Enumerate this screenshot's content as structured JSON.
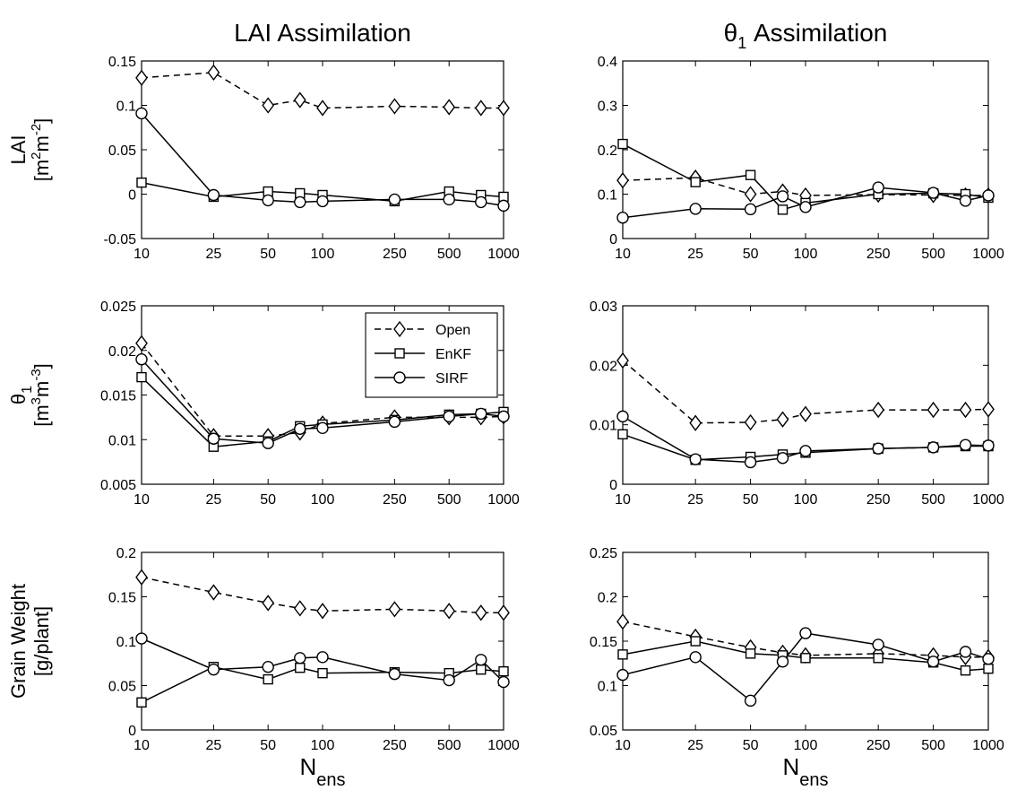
{
  "figure": {
    "col_titles": [
      {
        "main": "LAI Assimilation",
        "sym": "",
        "sub": ""
      },
      {
        "main": "Assimilation",
        "sym": "θ",
        "sub": "1"
      }
    ],
    "row_ylabels": [
      {
        "line1": {
          "main": "LAI",
          "sub": "",
          "sup": ""
        },
        "line2": "[m2m-2]"
      },
      {
        "line1": {
          "main": "θ",
          "sub": "1",
          "sup": ""
        },
        "line2": "[m3m-3]"
      },
      {
        "line1": {
          "main": "Grain Weight",
          "sub": "",
          "sup": ""
        },
        "line2": "[g/plant]"
      }
    ],
    "xlabel": {
      "main": "N",
      "sub": "ens"
    },
    "legend": [
      {
        "name": "Open",
        "style": "dashed",
        "marker": "diamond"
      },
      {
        "name": "EnKF",
        "style": "solid",
        "marker": "square"
      },
      {
        "name": "SIRF",
        "style": "solid",
        "marker": "circle"
      }
    ]
  },
  "chart_data": [
    {
      "type": "line",
      "x_scale": "log",
      "x": [
        10,
        25,
        50,
        75,
        100,
        250,
        500,
        750,
        1000
      ],
      "xticks": [
        "10",
        "25",
        "50",
        "100",
        "250",
        "500",
        "1000"
      ],
      "ylim": [
        -0.05,
        0.15
      ],
      "yticks": [
        "-0.05",
        "0",
        "0.05",
        "0.1",
        "0.15"
      ],
      "series": [
        {
          "name": "Open",
          "values": [
            0.131,
            0.137,
            0.1,
            0.106,
            0.097,
            0.099,
            0.098,
            0.097,
            0.097
          ]
        },
        {
          "name": "EnKF",
          "values": [
            0.013,
            -0.003,
            0.003,
            0.001,
            -0.001,
            -0.008,
            0.003,
            -0.001,
            -0.003
          ]
        },
        {
          "name": "SIRF",
          "values": [
            0.091,
            -0.001,
            -0.007,
            -0.009,
            -0.008,
            -0.006,
            -0.006,
            -0.009,
            -0.013
          ]
        }
      ]
    },
    {
      "type": "line",
      "x_scale": "log",
      "x": [
        10,
        25,
        50,
        75,
        100,
        250,
        500,
        750,
        1000
      ],
      "xticks": [
        "10",
        "25",
        "50",
        "100",
        "250",
        "500",
        "1000"
      ],
      "ylim": [
        0,
        0.4
      ],
      "yticks": [
        "0",
        "0.1",
        "0.2",
        "0.3",
        "0.4"
      ],
      "series": [
        {
          "name": "Open",
          "values": [
            0.131,
            0.137,
            0.1,
            0.106,
            0.097,
            0.099,
            0.098,
            0.097,
            0.097
          ]
        },
        {
          "name": "EnKF",
          "values": [
            0.213,
            0.127,
            0.143,
            0.065,
            0.08,
            0.1,
            0.102,
            0.1,
            0.092
          ]
        },
        {
          "name": "SIRF",
          "values": [
            0.047,
            0.067,
            0.066,
            0.095,
            0.071,
            0.115,
            0.103,
            0.085,
            0.097
          ]
        }
      ]
    },
    {
      "type": "line",
      "x_scale": "log",
      "x": [
        10,
        25,
        50,
        75,
        100,
        250,
        500,
        750,
        1000
      ],
      "xticks": [
        "10",
        "25",
        "50",
        "100",
        "250",
        "500",
        "1000"
      ],
      "ylim": [
        0.005,
        0.025
      ],
      "yticks": [
        "0.005",
        "0.01",
        "0.015",
        "0.02",
        "0.025"
      ],
      "series": [
        {
          "name": "Open",
          "values": [
            0.0208,
            0.0104,
            0.0104,
            0.0108,
            0.0118,
            0.0125,
            0.0125,
            0.0125,
            0.0126
          ]
        },
        {
          "name": "EnKF",
          "values": [
            0.017,
            0.0092,
            0.0098,
            0.0115,
            0.0117,
            0.0122,
            0.0128,
            0.0129,
            0.0131
          ]
        },
        {
          "name": "SIRF",
          "values": [
            0.019,
            0.0101,
            0.0096,
            0.0112,
            0.0113,
            0.012,
            0.0126,
            0.0129,
            0.0126
          ]
        }
      ]
    },
    {
      "type": "line",
      "x_scale": "log",
      "x": [
        10,
        25,
        50,
        75,
        100,
        250,
        500,
        750,
        1000
      ],
      "xticks": [
        "10",
        "25",
        "50",
        "100",
        "250",
        "500",
        "1000"
      ],
      "ylim": [
        0,
        0.03
      ],
      "yticks": [
        "0",
        "0.01",
        "0.02",
        "0.03"
      ],
      "series": [
        {
          "name": "Open",
          "values": [
            0.0208,
            0.0103,
            0.0104,
            0.0109,
            0.0118,
            0.0125,
            0.0125,
            0.0125,
            0.0126
          ]
        },
        {
          "name": "EnKF",
          "values": [
            0.0084,
            0.0041,
            0.0046,
            0.005,
            0.0053,
            0.006,
            0.0062,
            0.0064,
            0.0064
          ]
        },
        {
          "name": "SIRF",
          "values": [
            0.0114,
            0.0042,
            0.0037,
            0.0044,
            0.0056,
            0.006,
            0.0062,
            0.0066,
            0.0065
          ]
        }
      ]
    },
    {
      "type": "line",
      "x_scale": "log",
      "x": [
        10,
        25,
        50,
        75,
        100,
        250,
        500,
        750,
        1000
      ],
      "xticks": [
        "10",
        "25",
        "50",
        "100",
        "250",
        "500",
        "1000"
      ],
      "ylim": [
        0,
        0.2
      ],
      "yticks": [
        "0",
        "0.05",
        "0.1",
        "0.15",
        "0.2"
      ],
      "series": [
        {
          "name": "Open",
          "values": [
            0.172,
            0.155,
            0.143,
            0.137,
            0.134,
            0.136,
            0.134,
            0.132,
            0.132
          ]
        },
        {
          "name": "EnKF",
          "values": [
            0.031,
            0.071,
            0.057,
            0.07,
            0.064,
            0.065,
            0.064,
            0.068,
            0.066
          ]
        },
        {
          "name": "SIRF",
          "values": [
            0.103,
            0.068,
            0.071,
            0.081,
            0.082,
            0.063,
            0.056,
            0.079,
            0.054
          ]
        }
      ]
    },
    {
      "type": "line",
      "x_scale": "log",
      "x": [
        10,
        25,
        50,
        75,
        100,
        250,
        500,
        750,
        1000
      ],
      "xticks": [
        "10",
        "25",
        "50",
        "100",
        "250",
        "500",
        "1000"
      ],
      "ylim": [
        0.05,
        0.25
      ],
      "yticks": [
        "0.05",
        "0.1",
        "0.15",
        "0.2",
        "0.25"
      ],
      "series": [
        {
          "name": "Open",
          "values": [
            0.172,
            0.155,
            0.143,
            0.137,
            0.134,
            0.136,
            0.134,
            0.132,
            0.132
          ]
        },
        {
          "name": "EnKF",
          "values": [
            0.135,
            0.15,
            0.136,
            0.134,
            0.131,
            0.131,
            0.126,
            0.117,
            0.119
          ]
        },
        {
          "name": "SIRF",
          "values": [
            0.112,
            0.132,
            0.083,
            0.127,
            0.159,
            0.146,
            0.127,
            0.138,
            0.13
          ]
        }
      ]
    }
  ]
}
